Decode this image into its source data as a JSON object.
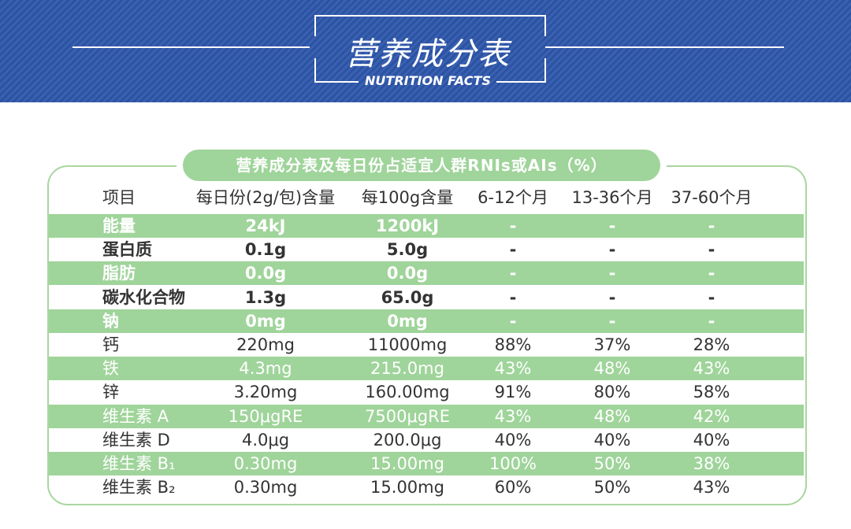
{
  "header": {
    "title": "营养成分表",
    "subtitle": "NUTRITION FACTS"
  },
  "table": {
    "title": "营养成分表及每日份占适宜人群RNIs或AIs（%）",
    "columns": [
      "项目",
      "每日份(2g/包)含量",
      "每100g含量",
      "6-12个月",
      "13-36个月",
      "37-60个月"
    ],
    "rows": [
      [
        "能量",
        "24kJ",
        "1200kJ",
        "-",
        "-",
        "-"
      ],
      [
        "蛋白质",
        "0.1g",
        "5.0g",
        "-",
        "-",
        "-"
      ],
      [
        "脂肪",
        "0.0g",
        "0.0g",
        "-",
        "-",
        "-"
      ],
      [
        "碳水化合物",
        "1.3g",
        "65.0g",
        "-",
        "-",
        "-"
      ],
      [
        "钠",
        "0mg",
        "0mg",
        "-",
        "-",
        "-"
      ],
      [
        "钙",
        "220mg",
        "11000mg",
        "88%",
        "37%",
        "28%"
      ],
      [
        "铁",
        "4.3mg",
        "215.0mg",
        "43%",
        "48%",
        "43%"
      ],
      [
        "锌",
        "3.20mg",
        "160.00mg",
        "91%",
        "80%",
        "58%"
      ],
      [
        "维生素 A",
        "150μgRE",
        "7500μgRE",
        "43%",
        "48%",
        "42%"
      ],
      [
        "维生素 D",
        "4.0μg",
        "200.0μg",
        "40%",
        "40%",
        "40%"
      ],
      [
        "维生素 B₁",
        "0.30mg",
        "15.00mg",
        "100%",
        "50%",
        "38%"
      ],
      [
        "维生素 B₂",
        "0.30mg",
        "15.00mg",
        "60%",
        "50%",
        "43%"
      ]
    ]
  }
}
